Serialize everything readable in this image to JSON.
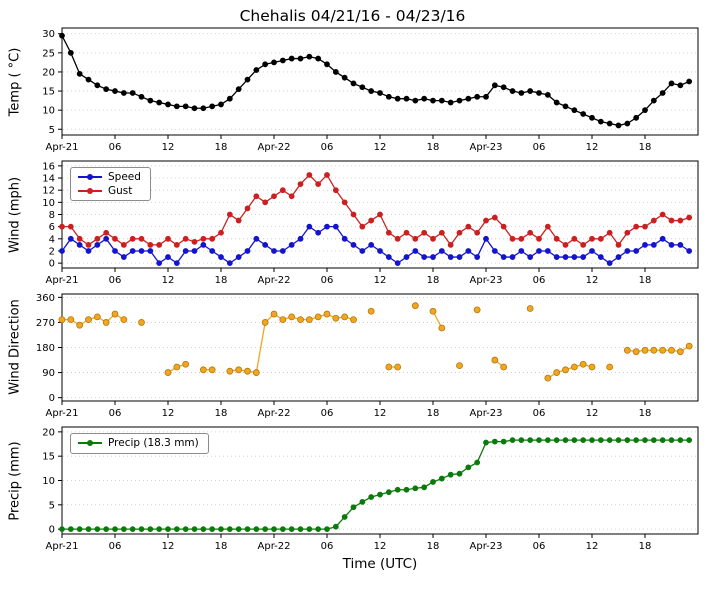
{
  "title": "Chehalis 04/21/16 - 04/23/16",
  "xlabel": "Time (UTC)",
  "x_axis": {
    "xlim": [
      0,
      72
    ],
    "ticks": [
      0,
      6,
      12,
      18,
      24,
      30,
      36,
      42,
      48,
      54,
      60,
      66
    ],
    "tick_labels": [
      "Apr-21",
      "06",
      "12",
      "18",
      "Apr-22",
      "06",
      "12",
      "18",
      "Apr-23",
      "06",
      "12",
      "18"
    ]
  },
  "chart_data": [
    {
      "type": "line",
      "ylabel": "Temp ( °C)",
      "ylim": [
        3.5,
        31.5
      ],
      "yticks": [
        5,
        10,
        15,
        20,
        25,
        30
      ],
      "grid": "horizontal-dashed",
      "series": [
        {
          "name": "Temp",
          "color": "#000000",
          "values": [
            29.5,
            25,
            19.5,
            18,
            16.5,
            15.5,
            15,
            14.5,
            14.5,
            13.5,
            12.5,
            12,
            11.5,
            11,
            11,
            10.5,
            10.5,
            11,
            11.5,
            13,
            15.5,
            18,
            20.5,
            22,
            22.5,
            23,
            23.5,
            23.5,
            24,
            23.5,
            22,
            20,
            18.5,
            17,
            16,
            15,
            14.5,
            13.5,
            13,
            13,
            12.5,
            13,
            12.5,
            12.5,
            12,
            12.5,
            13,
            13.5,
            13.5,
            16.5,
            16,
            15,
            14.5,
            15,
            14.5,
            14,
            12,
            11,
            10,
            9,
            8,
            7,
            6.5,
            6,
            6.5,
            8,
            10,
            12.5,
            14.5,
            17,
            16.5,
            17.5
          ]
        }
      ]
    },
    {
      "type": "line",
      "ylabel": "Wind (mph)",
      "ylim": [
        -0.8,
        16.8
      ],
      "yticks": [
        0,
        2,
        4,
        6,
        8,
        10,
        12,
        14,
        16
      ],
      "grid": "horizontal-dashed",
      "legend_position": "upper-left",
      "series": [
        {
          "name": "Speed",
          "color": "#1414cc",
          "values": [
            2,
            4,
            3,
            2,
            3,
            4,
            2,
            1,
            2,
            2,
            2,
            0,
            1,
            0,
            2,
            2,
            3,
            2,
            1,
            0,
            1,
            2,
            4,
            3,
            2,
            2,
            3,
            4,
            6,
            5,
            6,
            6,
            4,
            3,
            2,
            3,
            2,
            1,
            0,
            1,
            2,
            1,
            1,
            2,
            1,
            1,
            2,
            1,
            4,
            2,
            1,
            1,
            2,
            1,
            2,
            2,
            1,
            1,
            1,
            1,
            2,
            1,
            0,
            1,
            2,
            2,
            3,
            3,
            4,
            3,
            3,
            2
          ]
        },
        {
          "name": "Gust",
          "color": "#cc2020",
          "values": [
            6,
            6,
            4,
            3,
            4,
            5,
            4,
            3,
            4,
            4,
            3,
            3,
            4,
            3,
            4,
            3.5,
            4,
            4,
            5,
            8,
            7,
            9,
            11,
            10,
            11,
            12,
            11,
            13,
            14.5,
            13,
            14.5,
            12,
            10,
            8,
            6,
            7,
            8,
            5,
            4,
            5,
            4,
            5,
            4,
            5,
            3,
            5,
            6,
            5,
            7,
            7.5,
            6,
            4,
            4,
            5,
            4,
            6,
            4,
            3,
            4,
            3,
            4,
            4,
            5,
            3,
            5,
            6,
            6,
            7,
            8,
            7,
            7,
            7.5
          ]
        }
      ]
    },
    {
      "type": "scatter-line",
      "ylabel": "Wind Direction",
      "ylim": [
        -12,
        372
      ],
      "yticks": [
        0,
        90,
        180,
        270,
        360
      ],
      "grid": "horizontal-dashed",
      "series": [
        {
          "name": "Direction",
          "color": "#f0a623",
          "edge": "#b87708",
          "marker_r": 3,
          "values": [
            280,
            280,
            260,
            280,
            290,
            270,
            300,
            280,
            null,
            270,
            null,
            null,
            90,
            110,
            120,
            null,
            100,
            100,
            null,
            95,
            100,
            95,
            90,
            270,
            300,
            280,
            290,
            280,
            280,
            290,
            300,
            285,
            290,
            280,
            null,
            310,
            null,
            110,
            110,
            null,
            330,
            null,
            310,
            250,
            null,
            115,
            null,
            315,
            null,
            135,
            110,
            null,
            null,
            320,
            null,
            70,
            90,
            100,
            110,
            120,
            110,
            null,
            110,
            null,
            170,
            165,
            170,
            170,
            170,
            170,
            165,
            185
          ]
        }
      ]
    },
    {
      "type": "line",
      "ylabel": "Precip (mm)",
      "ylim": [
        -1,
        21
      ],
      "yticks": [
        0,
        5,
        10,
        15,
        20
      ],
      "grid": "horizontal-dashed",
      "legend_position": "upper-left",
      "series": [
        {
          "name": "Precip (18.3 mm)",
          "color": "#0a7a0a",
          "values": [
            0,
            0,
            0,
            0,
            0,
            0,
            0,
            0,
            0,
            0,
            0,
            0,
            0,
            0,
            0,
            0,
            0,
            0,
            0,
            0,
            0,
            0,
            0,
            0,
            0,
            0,
            0,
            0,
            0,
            0,
            0,
            0.5,
            2.5,
            4.5,
            5.6,
            6.6,
            7.1,
            7.6,
            8.1,
            8.1,
            8.4,
            8.6,
            9.7,
            10.4,
            11.2,
            11.4,
            12.7,
            13.7,
            17.8,
            18,
            18,
            18.3,
            18.3,
            18.3,
            18.3,
            18.3,
            18.3,
            18.3,
            18.3,
            18.3,
            18.3,
            18.3,
            18.3,
            18.3,
            18.3,
            18.3,
            18.3,
            18.3,
            18.3,
            18.3,
            18.3,
            18.3
          ]
        }
      ]
    }
  ]
}
